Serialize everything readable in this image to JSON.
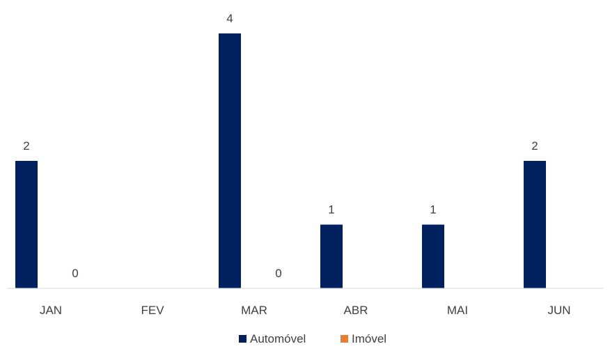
{
  "chart_data": {
    "type": "bar",
    "categories": [
      "JAN",
      "FEV",
      "MAR",
      "ABR",
      "MAI",
      "JUN"
    ],
    "series": [
      {
        "name": "Automóvel",
        "values": [
          2,
          null,
          4,
          1,
          1,
          2
        ],
        "color": "#002060"
      },
      {
        "name": "Imóvel",
        "values": [
          0,
          null,
          0,
          null,
          null,
          null
        ],
        "color": "#ED7D31"
      }
    ],
    "data_labels": true,
    "ylim": [
      0,
      4
    ],
    "y_axis_visible": false,
    "grid": false,
    "legend": "bottom-center",
    "title": "",
    "xlabel": "",
    "ylabel": ""
  }
}
